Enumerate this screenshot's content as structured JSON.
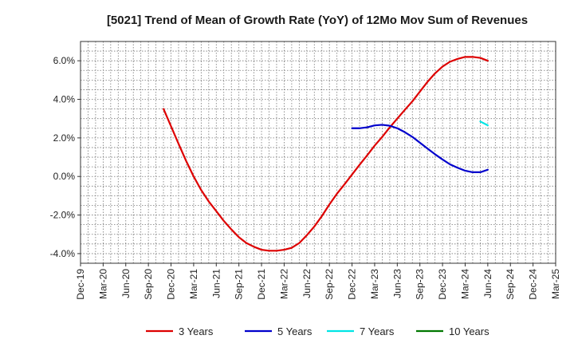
{
  "chart_data": {
    "type": "line",
    "title": "[5021]  Trend of Mean of Growth Rate (YoY) of 12Mo Mov Sum of Revenues",
    "xlabel": "",
    "ylabel": "",
    "x_ticks": [
      "Dec-19",
      "Mar-20",
      "Jun-20",
      "Sep-20",
      "Dec-20",
      "Mar-21",
      "Jun-21",
      "Sep-21",
      "Dec-21",
      "Mar-22",
      "Jun-22",
      "Sep-22",
      "Dec-22",
      "Mar-23",
      "Jun-23",
      "Sep-23",
      "Dec-23",
      "Mar-24",
      "Jun-24",
      "Sep-24",
      "Dec-24",
      "Mar-25"
    ],
    "y_ticks": [
      "-4.0%",
      "-2.0%",
      "0.0%",
      "2.0%",
      "4.0%",
      "6.0%"
    ],
    "y_tick_values": [
      -4,
      -2,
      0,
      2,
      4,
      6
    ],
    "ylim": [
      -4.5,
      7.0
    ],
    "x_range": [
      0,
      21
    ],
    "grid": true,
    "legend_position": "bottom",
    "series": [
      {
        "name": "3 Years",
        "color": "#dd0000",
        "points": [
          [
            3.67,
            3.5
          ],
          [
            4.0,
            2.6
          ],
          [
            4.33,
            1.7
          ],
          [
            4.67,
            0.8
          ],
          [
            5.0,
            0.0
          ],
          [
            5.33,
            -0.7
          ],
          [
            5.67,
            -1.3
          ],
          [
            6.0,
            -1.8
          ],
          [
            6.33,
            -2.3
          ],
          [
            6.67,
            -2.75
          ],
          [
            7.0,
            -3.15
          ],
          [
            7.33,
            -3.45
          ],
          [
            7.67,
            -3.65
          ],
          [
            8.0,
            -3.8
          ],
          [
            8.33,
            -3.85
          ],
          [
            8.67,
            -3.85
          ],
          [
            9.0,
            -3.8
          ],
          [
            9.33,
            -3.7
          ],
          [
            9.67,
            -3.45
          ],
          [
            10.0,
            -3.05
          ],
          [
            10.33,
            -2.6
          ],
          [
            10.67,
            -2.05
          ],
          [
            11.0,
            -1.45
          ],
          [
            11.33,
            -0.9
          ],
          [
            11.67,
            -0.4
          ],
          [
            12.0,
            0.1
          ],
          [
            12.33,
            0.6
          ],
          [
            12.67,
            1.1
          ],
          [
            13.0,
            1.6
          ],
          [
            13.33,
            2.05
          ],
          [
            13.67,
            2.55
          ],
          [
            14.0,
            3.0
          ],
          [
            14.33,
            3.45
          ],
          [
            14.67,
            3.9
          ],
          [
            15.0,
            4.4
          ],
          [
            15.33,
            4.9
          ],
          [
            15.67,
            5.35
          ],
          [
            16.0,
            5.7
          ],
          [
            16.33,
            5.95
          ],
          [
            16.67,
            6.1
          ],
          [
            17.0,
            6.2
          ],
          [
            17.33,
            6.2
          ],
          [
            17.67,
            6.15
          ],
          [
            18.0,
            6.0
          ]
        ]
      },
      {
        "name": "5 Years",
        "color": "#0000cc",
        "points": [
          [
            12.0,
            2.5
          ],
          [
            12.33,
            2.5
          ],
          [
            12.67,
            2.55
          ],
          [
            13.0,
            2.65
          ],
          [
            13.33,
            2.68
          ],
          [
            13.67,
            2.63
          ],
          [
            14.0,
            2.5
          ],
          [
            14.33,
            2.3
          ],
          [
            14.67,
            2.05
          ],
          [
            15.0,
            1.75
          ],
          [
            15.33,
            1.45
          ],
          [
            15.67,
            1.15
          ],
          [
            16.0,
            0.88
          ],
          [
            16.33,
            0.63
          ],
          [
            16.67,
            0.45
          ],
          [
            17.0,
            0.3
          ],
          [
            17.33,
            0.22
          ],
          [
            17.67,
            0.22
          ],
          [
            18.0,
            0.35
          ]
        ]
      },
      {
        "name": "7 Years",
        "color": "#00e5e5",
        "points": [
          [
            17.67,
            2.85
          ],
          [
            18.0,
            2.65
          ]
        ]
      },
      {
        "name": "10 Years",
        "color": "#007700",
        "points": []
      }
    ]
  }
}
